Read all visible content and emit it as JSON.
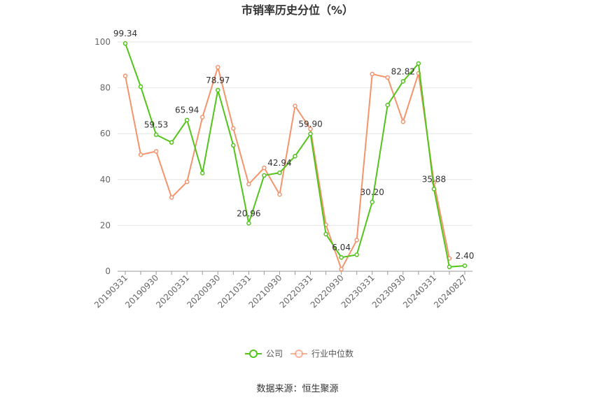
{
  "chart_data": {
    "type": "line",
    "title": "市销率历史分位（%）",
    "source": "数据来源：恒生聚源",
    "ylim": [
      0,
      100
    ],
    "yticks": [
      "0",
      "20",
      "40",
      "60",
      "80",
      "100"
    ],
    "grid": true,
    "legend_position": "bottom-center",
    "x": [
      "20190331",
      "20190630",
      "20190930",
      "20191231",
      "20200331",
      "20200630",
      "20200930",
      "20201231",
      "20210331",
      "20210630",
      "20210930",
      "20211231",
      "20220331",
      "20220630",
      "20220930",
      "20221231",
      "20230331",
      "20230630",
      "20230930",
      "20231231",
      "20240331",
      "20240630",
      "20240827"
    ],
    "xtick_labels": [
      {
        "index": 0,
        "label": "20190331"
      },
      {
        "index": 2,
        "label": "20190930"
      },
      {
        "index": 4,
        "label": "20200331"
      },
      {
        "index": 6,
        "label": "20200930"
      },
      {
        "index": 8,
        "label": "20210331"
      },
      {
        "index": 10,
        "label": "20210930"
      },
      {
        "index": 12,
        "label": "20220331"
      },
      {
        "index": 14,
        "label": "20220930"
      },
      {
        "index": 16,
        "label": "20230331"
      },
      {
        "index": 18,
        "label": "20230930"
      },
      {
        "index": 20,
        "label": "20240331"
      },
      {
        "index": 22,
        "label": "20240827"
      }
    ],
    "series": [
      {
        "name": "公司",
        "color": "#52c41a",
        "values": [
          99.34,
          80.5,
          59.53,
          56.2,
          65.94,
          42.8,
          78.97,
          54.9,
          20.96,
          41.8,
          42.94,
          50.2,
          59.9,
          16.2,
          6.04,
          7.2,
          30.2,
          72.5,
          82.82,
          90.6,
          35.88,
          1.9,
          2.4
        ],
        "data_labels": [
          {
            "index": 0,
            "text": "99.34"
          },
          {
            "index": 2,
            "text": "59.53"
          },
          {
            "index": 4,
            "text": "65.94"
          },
          {
            "index": 6,
            "text": "78.97"
          },
          {
            "index": 8,
            "text": "20.96"
          },
          {
            "index": 10,
            "text": "42.94"
          },
          {
            "index": 12,
            "text": "59.90"
          },
          {
            "index": 14,
            "text": "6.04"
          },
          {
            "index": 16,
            "text": "30.20"
          },
          {
            "index": 18,
            "text": "82.82"
          },
          {
            "index": 20,
            "text": "35.88"
          },
          {
            "index": 22,
            "text": "2.40"
          }
        ]
      },
      {
        "name": "行业中位数",
        "color": "#f4946c",
        "values": [
          85.2,
          50.8,
          52.3,
          32.2,
          39.0,
          67.2,
          89.0,
          62.3,
          38.0,
          45.1,
          33.5,
          72.1,
          62.0,
          20.3,
          0.9,
          13.6,
          86.0,
          84.5,
          65.2,
          86.3,
          38.8,
          5.6,
          null
        ],
        "data_labels": []
      }
    ]
  }
}
